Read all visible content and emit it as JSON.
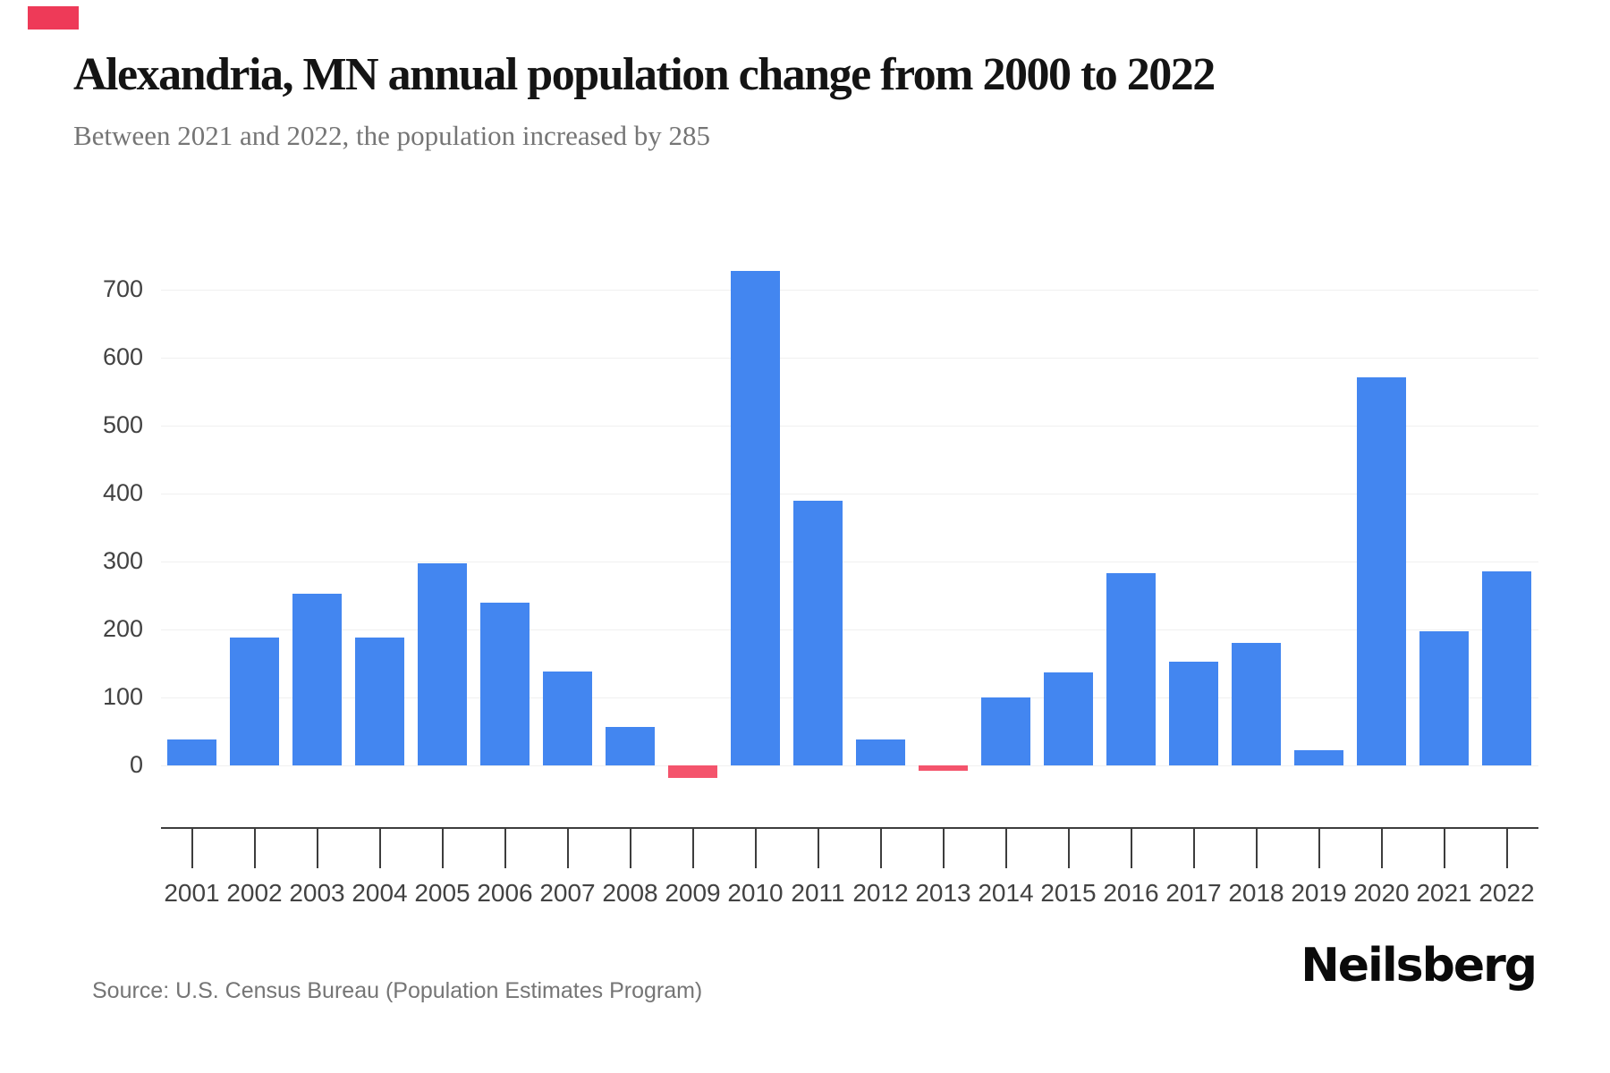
{
  "header": {
    "title": "Alexandria, MN annual population change from 2000 to 2022",
    "subtitle": "Between 2021 and 2022, the population increased by 285"
  },
  "footer": {
    "source": "Source: U.S. Census Bureau (Population Estimates Program)",
    "brand": "Neilsberg"
  },
  "colors": {
    "accent_rect": "#EE3A58",
    "bar_positive": "#4386F0",
    "bar_negative": "#F4546C",
    "gridline": "#F0F0F0",
    "axis": "#3D3D3D",
    "tick_label": "#424242"
  },
  "chart_data": {
    "type": "bar",
    "title": "Alexandria, MN annual population change from 2000 to 2022",
    "xlabel": "",
    "ylabel": "",
    "categories": [
      "2001",
      "2002",
      "2003",
      "2004",
      "2005",
      "2006",
      "2007",
      "2008",
      "2009",
      "2010",
      "2011",
      "2012",
      "2013",
      "2014",
      "2015",
      "2016",
      "2017",
      "2018",
      "2019",
      "2020",
      "2021",
      "2022"
    ],
    "values": [
      38,
      188,
      252,
      188,
      297,
      240,
      138,
      57,
      -19,
      728,
      390,
      38,
      -8,
      100,
      137,
      283,
      152,
      180,
      22,
      571,
      197,
      285
    ],
    "yticks": [
      0,
      100,
      200,
      300,
      400,
      500,
      600,
      700
    ],
    "ylim": [
      -40,
      760
    ],
    "grid": true,
    "legend": false,
    "positive_color": "#4386F0",
    "negative_color": "#F4546C"
  }
}
